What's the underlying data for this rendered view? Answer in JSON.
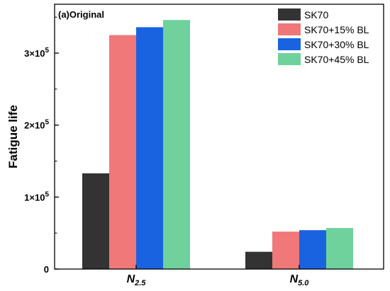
{
  "chart_data": {
    "type": "bar",
    "title": "(a)Original",
    "xlabel": "",
    "ylabel": "Fatigue life",
    "categories": [
      {
        "base": "N",
        "sub": "2.5"
      },
      {
        "base": "N",
        "sub": "5.0"
      }
    ],
    "series": [
      {
        "name": "SK70",
        "color": "#333333",
        "values": [
          133000,
          24000
        ]
      },
      {
        "name": "SK70+15% BL",
        "color": "#f07878",
        "values": [
          325000,
          52000
        ]
      },
      {
        "name": "SK70+30% BL",
        "color": "#1a63e0",
        "values": [
          336000,
          54000
        ]
      },
      {
        "name": "SK70+45% BL",
        "color": "#6fd19c",
        "values": [
          346000,
          57000
        ]
      }
    ],
    "ylim": [
      0,
      360000
    ],
    "yticks": [
      {
        "value": 0,
        "mantissa": "0",
        "exponent": ""
      },
      {
        "value": 100000,
        "mantissa": "1×10",
        "exponent": "5"
      },
      {
        "value": 200000,
        "mantissa": "2×10",
        "exponent": "5"
      },
      {
        "value": 300000,
        "mantissa": "3×10",
        "exponent": "5"
      }
    ],
    "grid": false,
    "legend": "top-right"
  }
}
